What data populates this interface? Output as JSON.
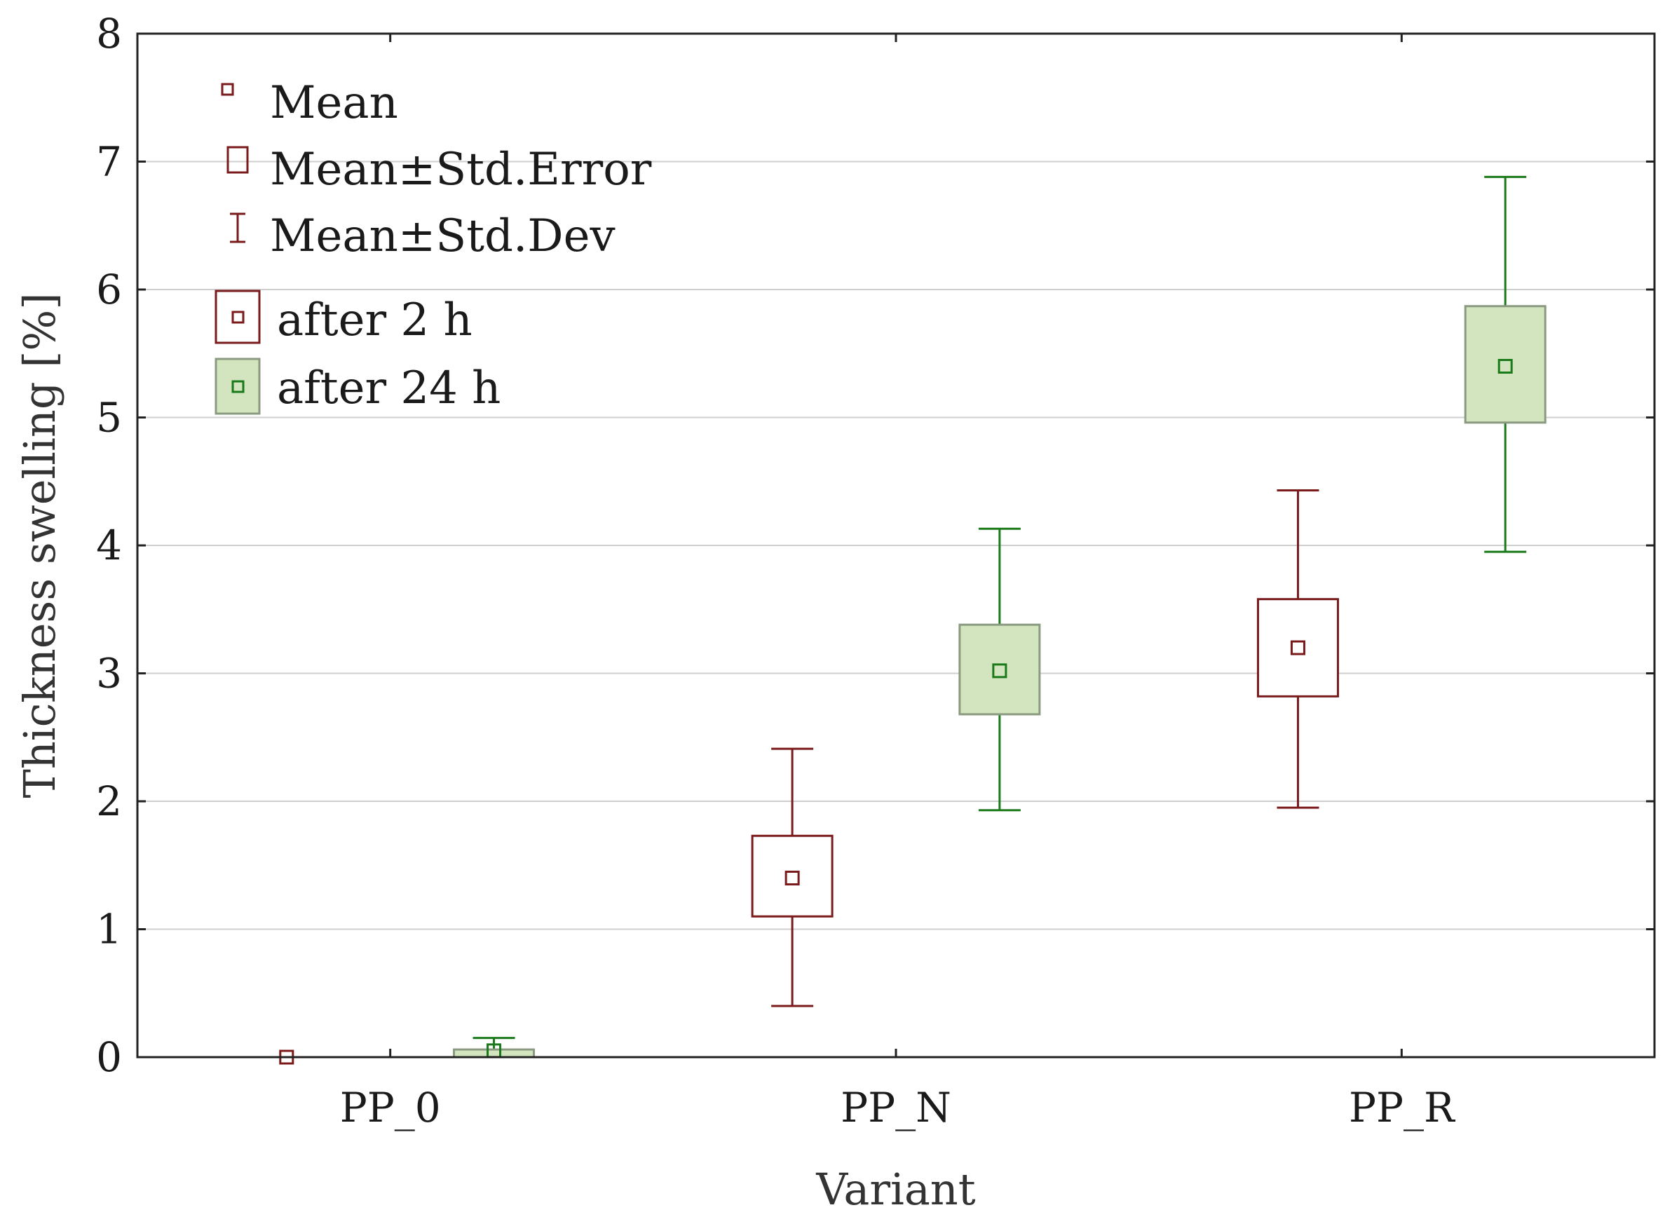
{
  "chart_data": {
    "type": "box",
    "title": "",
    "xlabel": "Variant",
    "ylabel": "Thickness swelling [%]",
    "ylim": [
      0,
      8
    ],
    "yticks": [
      "0",
      "1",
      "2",
      "3",
      "4",
      "5",
      "6",
      "7",
      "8"
    ],
    "categories": [
      "PP_0",
      "PP_N",
      "PP_R"
    ],
    "grid": true,
    "legend": {
      "position": "top-left",
      "items": [
        "Mean",
        "Mean±Std.Error",
        "Mean±Std.Dev",
        "after 2 h",
        "after 24 h"
      ]
    },
    "series": [
      {
        "name": "after 2 h",
        "color": "#7b1a1a",
        "fill": "#ffffff",
        "mean": [
          0.0,
          1.4,
          3.2
        ],
        "se_low": [
          0.0,
          1.1,
          2.82
        ],
        "se_high": [
          0.0,
          1.73,
          3.58
        ],
        "sd_low": [
          0.0,
          0.4,
          1.95
        ],
        "sd_high": [
          0.0,
          2.41,
          4.43
        ]
      },
      {
        "name": "after 24 h",
        "color": "#1a7a1a",
        "fill": "#d3e5bf",
        "mean": [
          0.05,
          3.02,
          5.4
        ],
        "se_low": [
          0.0,
          2.68,
          4.96
        ],
        "se_high": [
          0.06,
          3.38,
          5.87
        ],
        "sd_low": [
          0.0,
          1.93,
          3.95
        ],
        "sd_high": [
          0.15,
          4.13,
          6.88
        ]
      }
    ]
  }
}
